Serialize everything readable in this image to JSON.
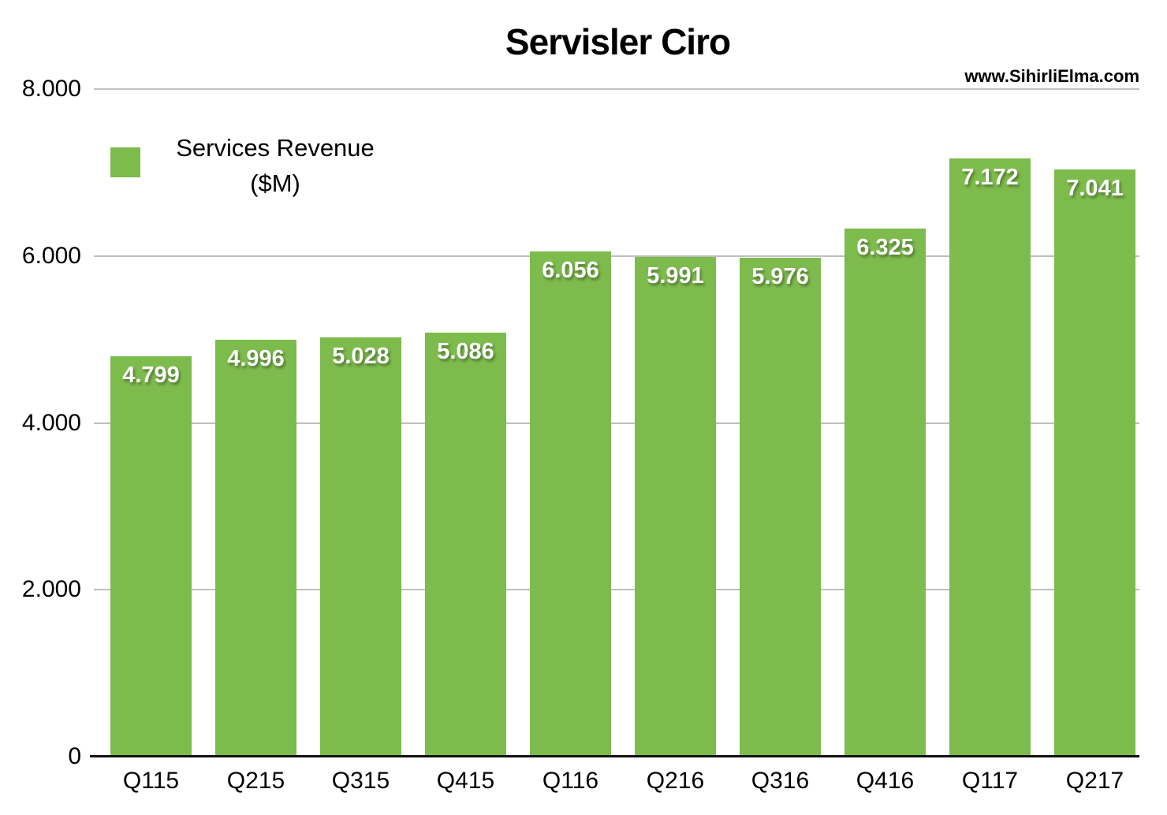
{
  "page": {
    "title": "Servisler Ciro",
    "watermark": "www.SihirliElma.com"
  },
  "legend": {
    "line1": "Services Revenue",
    "line2": "($M)"
  },
  "colors": {
    "bar": "#7dbb4d",
    "gridline": "#bfbfbf",
    "axis": "#111111",
    "bar_label": "#ffffff"
  },
  "chart_data": {
    "type": "bar",
    "title": "Servisler Ciro",
    "series_name": "Services Revenue ($M)",
    "categories": [
      "Q115",
      "Q215",
      "Q315",
      "Q415",
      "Q116",
      "Q216",
      "Q316",
      "Q416",
      "Q117",
      "Q217"
    ],
    "values": [
      4799,
      4996,
      5028,
      5086,
      6056,
      5991,
      5976,
      6325,
      7172,
      7041
    ],
    "value_labels": [
      "4.799",
      "4.996",
      "5.028",
      "5.086",
      "6.056",
      "5.991",
      "5.976",
      "6.325",
      "7.172",
      "7.041"
    ],
    "xlabel": "",
    "ylabel": "",
    "ylim": [
      0,
      8000
    ],
    "yticks": [
      0,
      2000,
      4000,
      6000,
      8000
    ],
    "ytick_labels": [
      "0",
      "2.000",
      "4.000",
      "6.000",
      "8.000"
    ],
    "grid": true,
    "legend_position": "top-left"
  }
}
